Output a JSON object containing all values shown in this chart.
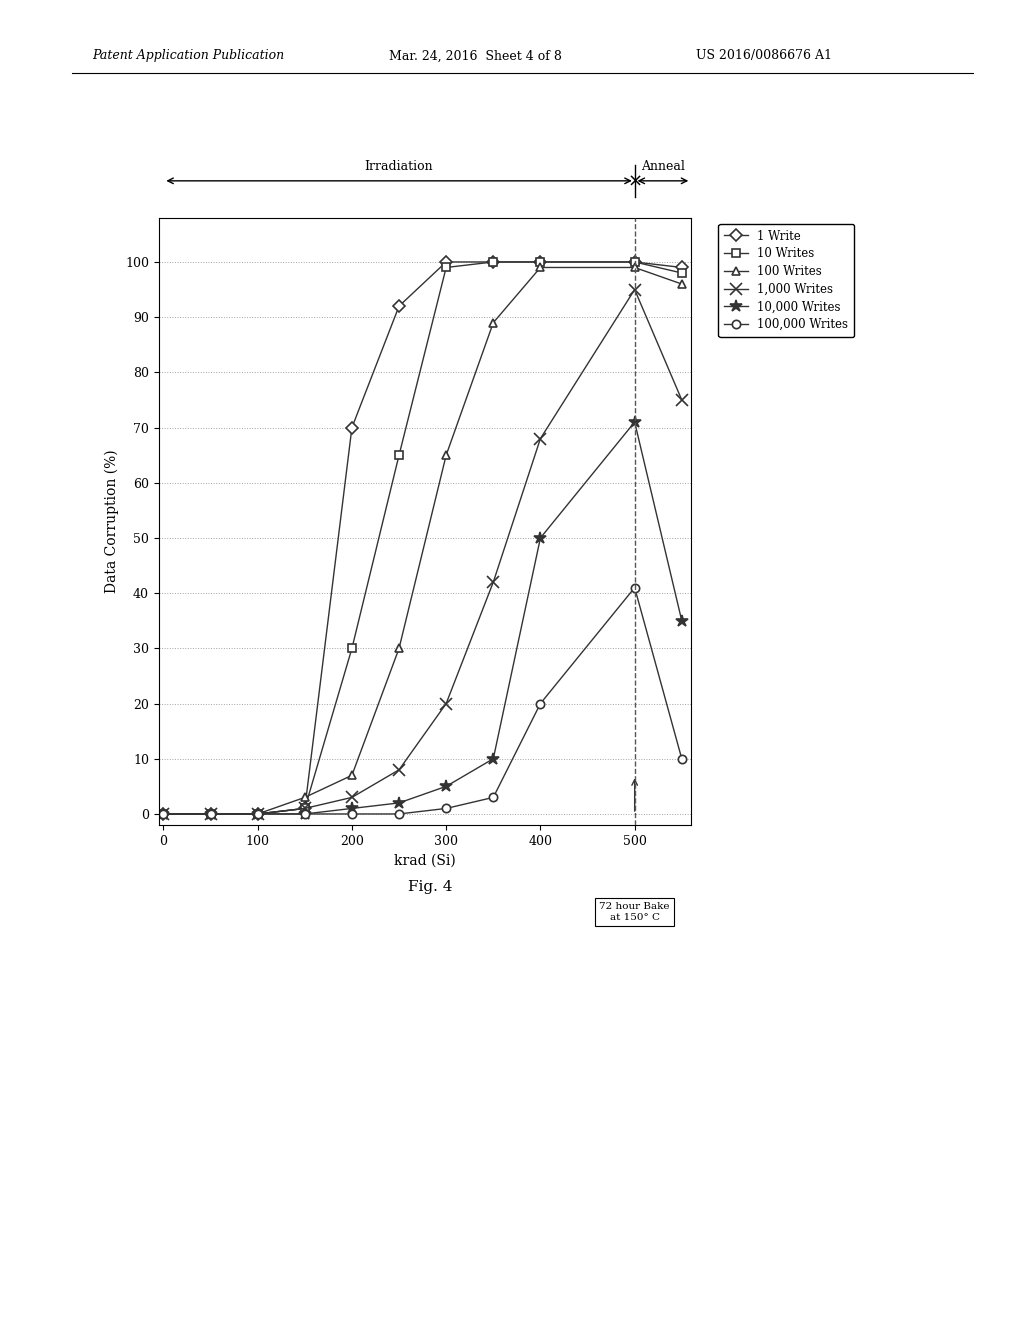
{
  "xlabel": "krad (Si)",
  "ylabel": "Data Corruption (%)",
  "xlim": [
    -5,
    560
  ],
  "ylim": [
    -2,
    108
  ],
  "yticks": [
    0,
    10,
    20,
    30,
    40,
    50,
    60,
    70,
    80,
    90,
    100
  ],
  "xticks": [
    0,
    100,
    200,
    300,
    400,
    500
  ],
  "fig_caption": "Fig. 4",
  "patent_header_left": "Patent Application Publication",
  "patent_header_mid": "Mar. 24, 2016  Sheet 4 of 8",
  "patent_header_right": "US 2016/0086676 A1",
  "irradiation_label": "Irradiation",
  "anneal_label": "Anneal",
  "dashed_line_x": 500,
  "bake_label_line1": "72 hour Bake",
  "bake_label_line2": "at 150° C",
  "series": [
    {
      "label": "1 Write",
      "marker": "D",
      "x": [
        0,
        50,
        100,
        150,
        200,
        250,
        300,
        350,
        400,
        500,
        550
      ],
      "y": [
        0,
        0,
        0,
        1,
        70,
        92,
        100,
        100,
        100,
        100,
        99
      ]
    },
    {
      "label": "10 Writes",
      "marker": "s",
      "x": [
        0,
        50,
        100,
        150,
        200,
        250,
        300,
        350,
        400,
        500,
        550
      ],
      "y": [
        0,
        0,
        0,
        1,
        30,
        65,
        99,
        100,
        100,
        100,
        98
      ]
    },
    {
      "label": "100 Writes",
      "marker": "^",
      "x": [
        0,
        50,
        100,
        150,
        200,
        250,
        300,
        350,
        400,
        500,
        550
      ],
      "y": [
        0,
        0,
        0,
        3,
        7,
        30,
        65,
        89,
        99,
        99,
        96
      ]
    },
    {
      "label": "1,000 Writes",
      "marker": "x",
      "x": [
        0,
        50,
        100,
        150,
        200,
        250,
        300,
        350,
        400,
        500,
        550
      ],
      "y": [
        0,
        0,
        0,
        1,
        3,
        8,
        20,
        42,
        68,
        95,
        75
      ]
    },
    {
      "label": "10,000 Writes",
      "marker": "*",
      "x": [
        0,
        50,
        100,
        150,
        200,
        250,
        300,
        350,
        400,
        500,
        550
      ],
      "y": [
        0,
        0,
        0,
        0,
        1,
        2,
        5,
        10,
        50,
        71,
        35
      ]
    },
    {
      "label": "100,000 Writes",
      "marker": "o",
      "x": [
        0,
        50,
        100,
        150,
        200,
        250,
        300,
        350,
        400,
        500,
        550
      ],
      "y": [
        0,
        0,
        0,
        0,
        0,
        0,
        1,
        3,
        20,
        41,
        10
      ]
    }
  ],
  "line_color": "#333333",
  "background_color": "#ffffff",
  "grid_color": "#999999"
}
